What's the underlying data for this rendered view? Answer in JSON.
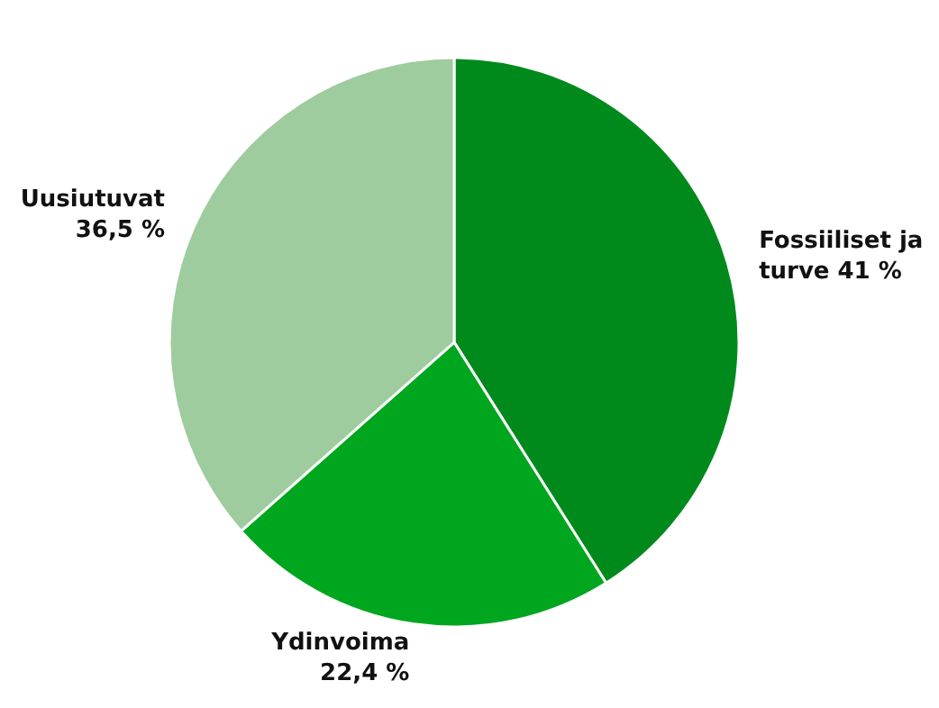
{
  "chart_data": {
    "type": "pie",
    "categories": [
      "Fossiiliset ja turve",
      "Ydinvoima",
      "Uusiutuvat"
    ],
    "values": [
      41,
      22.4,
      36.5
    ],
    "value_labels": [
      "41 %",
      "22,4 %",
      "36,5 %"
    ],
    "colors": [
      "#008a1c",
      "#00a61e",
      "#9ecc9e"
    ]
  }
}
